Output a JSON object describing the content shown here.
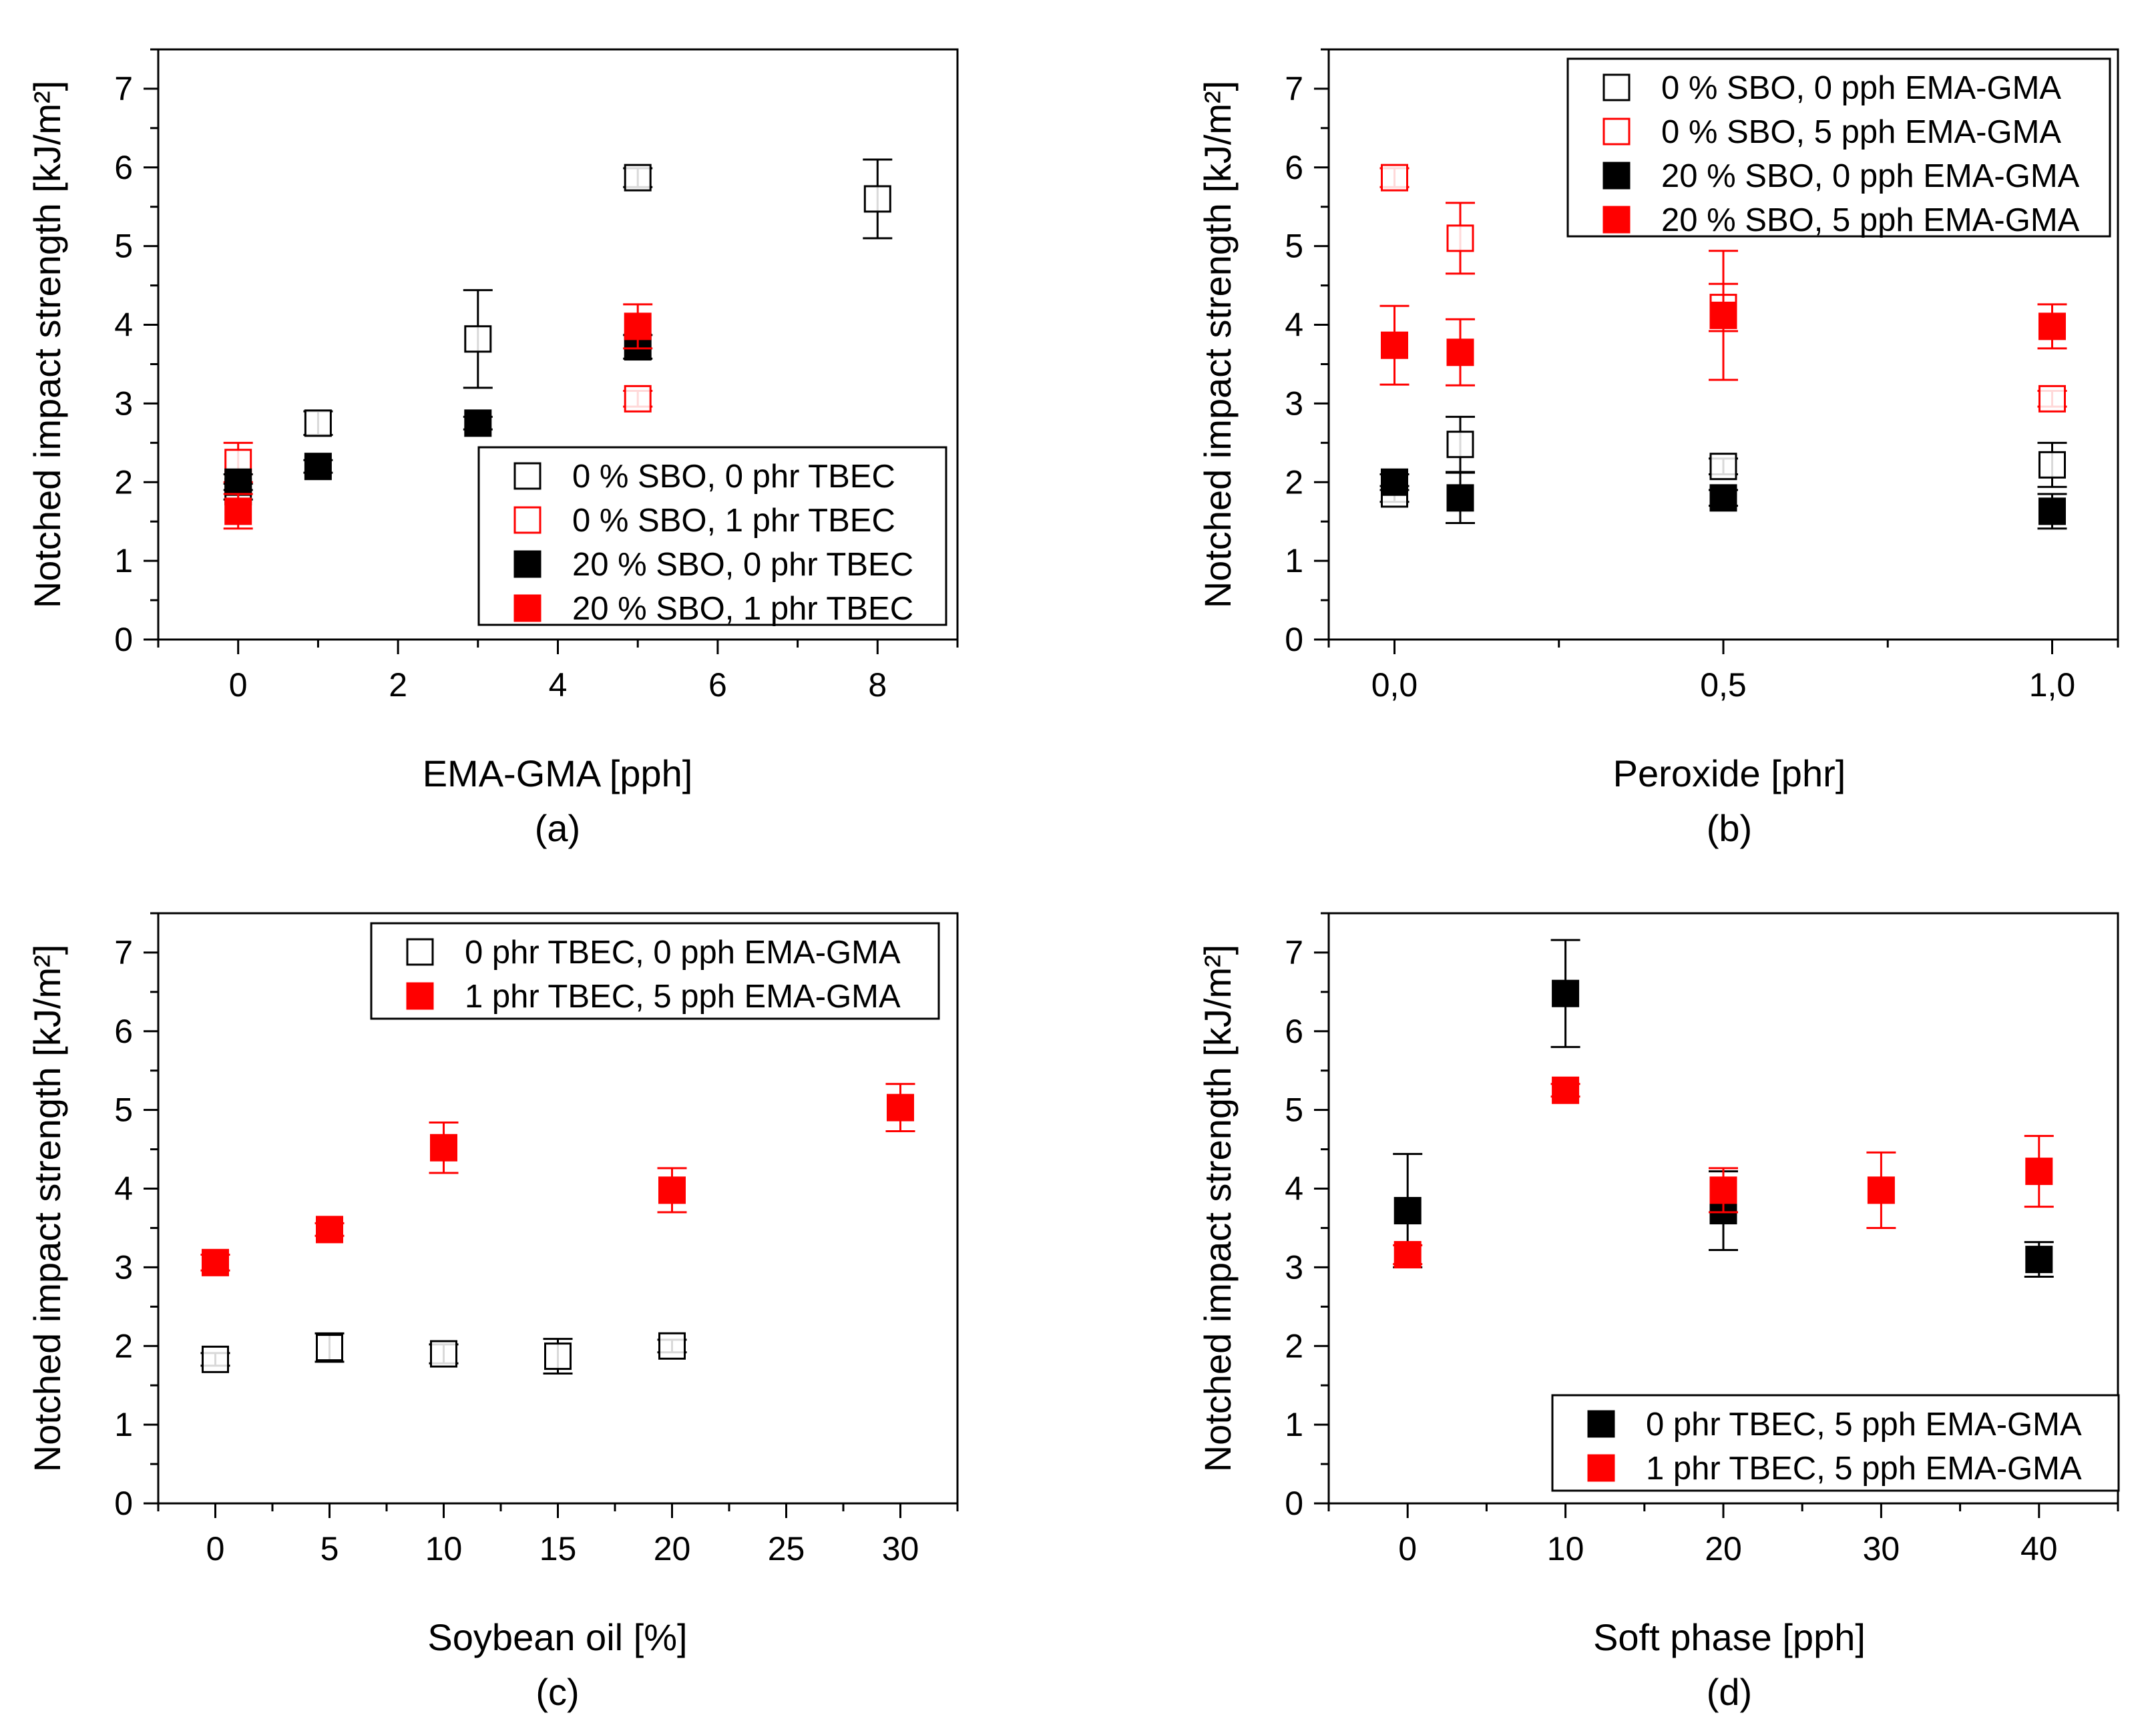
{
  "chart_data": [
    {
      "type": "scatter",
      "caption": "(a)",
      "xlabel": "EMA-GMA [pph]",
      "ylabel": "Notched impact strength [kJ/m²]",
      "xlim": [
        -1,
        9
      ],
      "ylim": [
        0,
        7.5
      ],
      "xticks": [
        0,
        2,
        4,
        6,
        8
      ],
      "xtick_labels": [
        "0",
        "2",
        "4",
        "6",
        "8"
      ],
      "xminor": [
        -1,
        1,
        3,
        5,
        7,
        9
      ],
      "yticks": [
        0,
        1,
        2,
        3,
        4,
        5,
        6,
        7
      ],
      "ytick_labels": [
        "0",
        "1",
        "2",
        "3",
        "4",
        "5",
        "6",
        "7"
      ],
      "legend_position": "bottom-right",
      "series": [
        {
          "name": "0 % SBO, 0 phr TBEC",
          "color": "#000000",
          "filled": false,
          "points": [
            {
              "x": 0,
              "y": 1.88,
              "err": 0.1
            },
            {
              "x": 1,
              "y": 2.75,
              "err": 0.15
            },
            {
              "x": 3,
              "y": 3.82,
              "err": 0.62
            },
            {
              "x": 5,
              "y": 5.87,
              "err": 0.12
            },
            {
              "x": 8,
              "y": 5.6,
              "err": 0.5
            }
          ]
        },
        {
          "name": "0 % SBO, 1 phr TBEC",
          "color": "#ff0000",
          "filled": false,
          "points": [
            {
              "x": 0,
              "y": 2.25,
              "err": 0.25
            },
            {
              "x": 5,
              "y": 3.06,
              "err": 0.1
            }
          ]
        },
        {
          "name": "20 % SBO, 0 phr TBEC",
          "color": "#000000",
          "filled": true,
          "points": [
            {
              "x": 0,
              "y": 2.0,
              "err": 0.1
            },
            {
              "x": 1,
              "y": 2.2,
              "err": 0.08
            },
            {
              "x": 3,
              "y": 2.75,
              "err": 0.08
            },
            {
              "x": 5,
              "y": 3.72,
              "err": 0.15
            }
          ]
        },
        {
          "name": "20 % SBO, 1 phr TBEC",
          "color": "#ff0000",
          "filled": true,
          "points": [
            {
              "x": 0,
              "y": 1.63,
              "err": 0.22
            },
            {
              "x": 5,
              "y": 3.98,
              "err": 0.28
            }
          ]
        }
      ]
    },
    {
      "type": "scatter",
      "caption": "(b)",
      "xlabel": "Peroxide [phr]",
      "ylabel": "Notched impact strength [kJ/m²]",
      "xlim": [
        -0.1,
        1.1
      ],
      "ylim": [
        0,
        7.5
      ],
      "xticks": [
        0,
        0.5,
        1.0
      ],
      "xtick_labels": [
        "0,0",
        "0,5",
        "1,0"
      ],
      "xminor": [
        -0.1,
        0.25,
        0.75,
        1.1
      ],
      "yticks": [
        0,
        1,
        2,
        3,
        4,
        5,
        6,
        7
      ],
      "ytick_labels": [
        "0",
        "1",
        "2",
        "3",
        "4",
        "5",
        "6",
        "7"
      ],
      "legend_position": "top-right",
      "series": [
        {
          "name": "0 % SBO, 0 pph EMA-GMA",
          "color": "#000000",
          "filled": false,
          "points": [
            {
              "x": 0,
              "y": 1.85,
              "err": 0.1
            },
            {
              "x": 0.1,
              "y": 2.48,
              "err": 0.35
            },
            {
              "x": 0.5,
              "y": 2.2,
              "err": 0.1
            },
            {
              "x": 1.0,
              "y": 2.22,
              "err": 0.28
            }
          ]
        },
        {
          "name": "0 % SBO, 5 pph EMA-GMA",
          "color": "#ff0000",
          "filled": false,
          "points": [
            {
              "x": 0,
              "y": 5.87,
              "err": 0.12
            },
            {
              "x": 0.1,
              "y": 5.1,
              "err": 0.45
            },
            {
              "x": 0.5,
              "y": 4.22,
              "err": 0.3
            },
            {
              "x": 1.0,
              "y": 3.06,
              "err": 0.1
            }
          ]
        },
        {
          "name": "20 % SBO, 0 pph EMA-GMA",
          "color": "#000000",
          "filled": true,
          "points": [
            {
              "x": 0,
              "y": 2.0,
              "err": 0.1
            },
            {
              "x": 0.1,
              "y": 1.8,
              "err": 0.32
            },
            {
              "x": 0.5,
              "y": 1.8,
              "err": 0.1
            },
            {
              "x": 1.0,
              "y": 1.63,
              "err": 0.22
            }
          ]
        },
        {
          "name": "20 % SBO, 5 pph EMA-GMA",
          "color": "#ff0000",
          "filled": true,
          "points": [
            {
              "x": 0,
              "y": 3.74,
              "err": 0.5
            },
            {
              "x": 0.1,
              "y": 3.65,
              "err": 0.42
            },
            {
              "x": 0.5,
              "y": 4.12,
              "err": 0.82
            },
            {
              "x": 1.0,
              "y": 3.98,
              "err": 0.28
            }
          ]
        }
      ]
    },
    {
      "type": "scatter",
      "caption": "(c)",
      "xlabel": "Soybean oil [%]",
      "ylabel": "Notched impact strength [kJ/m²]",
      "xlim": [
        -2.5,
        32.5
      ],
      "ylim": [
        0,
        7.5
      ],
      "xticks": [
        0,
        5,
        10,
        15,
        20,
        25,
        30
      ],
      "xtick_labels": [
        "0",
        "5",
        "10",
        "15",
        "20",
        "25",
        "30"
      ],
      "xminor": [
        -2.5,
        2.5,
        7.5,
        12.5,
        17.5,
        22.5,
        27.5,
        32.5
      ],
      "yticks": [
        0,
        1,
        2,
        3,
        4,
        5,
        6,
        7
      ],
      "ytick_labels": [
        "0",
        "1",
        "2",
        "3",
        "4",
        "5",
        "6",
        "7"
      ],
      "legend_position": "top-right",
      "series": [
        {
          "name": "0 phr TBEC, 0 pph EMA-GMA",
          "color": "#000000",
          "filled": false,
          "points": [
            {
              "x": 0,
              "y": 1.83,
              "err": 0.08
            },
            {
              "x": 5,
              "y": 1.98,
              "err": 0.18
            },
            {
              "x": 10,
              "y": 1.9,
              "err": 0.12
            },
            {
              "x": 15,
              "y": 1.87,
              "err": 0.22
            },
            {
              "x": 20,
              "y": 2.0,
              "err": 0.08
            }
          ]
        },
        {
          "name": "1 phr TBEC, 5 pph EMA-GMA",
          "color": "#ff0000",
          "filled": true,
          "points": [
            {
              "x": 0,
              "y": 3.06,
              "err": 0.1
            },
            {
              "x": 5,
              "y": 3.48,
              "err": 0.08
            },
            {
              "x": 10,
              "y": 4.52,
              "err": 0.32
            },
            {
              "x": 20,
              "y": 3.98,
              "err": 0.28
            },
            {
              "x": 30,
              "y": 5.03,
              "err": 0.3
            }
          ]
        }
      ]
    },
    {
      "type": "scatter",
      "caption": "(d)",
      "xlabel": "Soft phase [pph]",
      "ylabel": "Notched impact strength [kJ/m²]",
      "xlim": [
        -5,
        45
      ],
      "ylim": [
        0,
        7.5
      ],
      "xticks": [
        0,
        10,
        20,
        30,
        40
      ],
      "xtick_labels": [
        "0",
        "10",
        "20",
        "30",
        "40"
      ],
      "xminor": [
        -5,
        5,
        15,
        25,
        35,
        45
      ],
      "yticks": [
        0,
        1,
        2,
        3,
        4,
        5,
        6,
        7
      ],
      "ytick_labels": [
        "0",
        "1",
        "2",
        "3",
        "4",
        "5",
        "6",
        "7"
      ],
      "legend_position": "bottom-right",
      "series": [
        {
          "name": "0 phr TBEC, 5 pph EMA-GMA",
          "color": "#000000",
          "filled": true,
          "points": [
            {
              "x": 0,
              "y": 3.72,
              "err": 0.72
            },
            {
              "x": 10,
              "y": 6.48,
              "err": 0.68
            },
            {
              "x": 20,
              "y": 3.72,
              "err": 0.5
            },
            {
              "x": 40,
              "y": 3.1,
              "err": 0.22
            }
          ]
        },
        {
          "name": "1 phr TBEC, 5 pph EMA-GMA",
          "color": "#ff0000",
          "filled": true,
          "points": [
            {
              "x": 0,
              "y": 3.16,
              "err": 0.12
            },
            {
              "x": 10,
              "y": 5.25,
              "err": 0.08
            },
            {
              "x": 20,
              "y": 3.98,
              "err": 0.28
            },
            {
              "x": 30,
              "y": 3.98,
              "err": 0.48
            },
            {
              "x": 40,
              "y": 4.22,
              "err": 0.45
            }
          ]
        }
      ]
    }
  ]
}
